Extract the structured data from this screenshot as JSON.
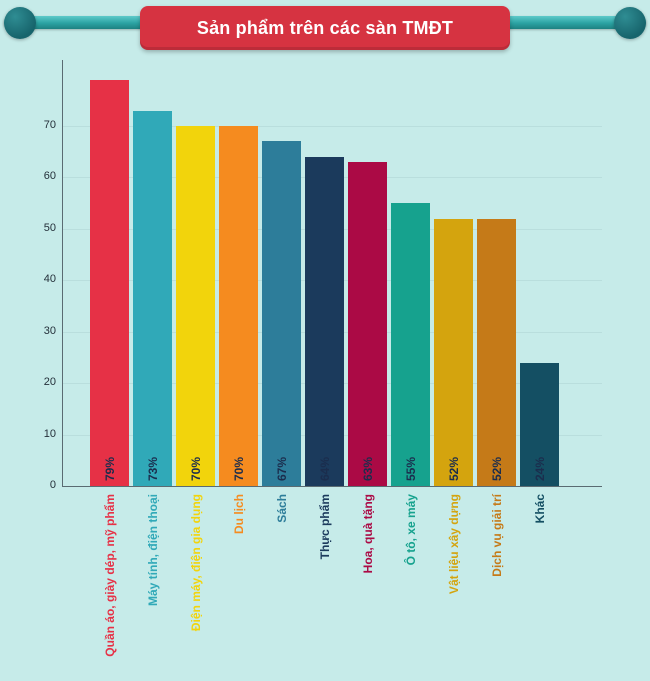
{
  "banner": {
    "title": "Sản phẩm trên các sàn TMĐT"
  },
  "chart_data": {
    "type": "bar",
    "title": "Sản phẩm trên các sàn TMĐT",
    "categories": [
      "Quần áo, giày dép, mỹ phẩm",
      "Máy tính, điện thoại",
      "Điện máy, điện gia dụng",
      "Du lịch",
      "Sách",
      "Thực phẩm",
      "Hoa, quà tặng",
      "Ô tô, xe máy",
      "Vật liệu xây dựng",
      "Dịch vụ giải trí",
      "Khác"
    ],
    "values": [
      79,
      73,
      70,
      70,
      67,
      64,
      63,
      55,
      52,
      52,
      24
    ],
    "value_labels": [
      "79%",
      "73%",
      "70%",
      "70%",
      "67%",
      "64%",
      "63%",
      "55%",
      "52%",
      "52%",
      "24%"
    ],
    "bar_colors": [
      "#e63146",
      "#30a9b8",
      "#f2d40c",
      "#f58b1f",
      "#2d7d9a",
      "#1b3a5c",
      "#ab0a45",
      "#16a28e",
      "#d4a40e",
      "#c57a18",
      "#144f63"
    ],
    "yticks": [
      0,
      10,
      20,
      30,
      40,
      50,
      60,
      70
    ],
    "ylim": [
      0,
      85
    ],
    "xlabel": "",
    "ylabel": "",
    "grid": false,
    "legend": "none"
  },
  "colors": {
    "background": "#c6ebe9",
    "banner": "#d63341",
    "banner_text": "#ffffff",
    "rod": "#2ba3a3",
    "knob": "#17646c",
    "axis": "#5a6b72",
    "tick_text": "#24303a",
    "value_text": "#1b2d4d"
  }
}
